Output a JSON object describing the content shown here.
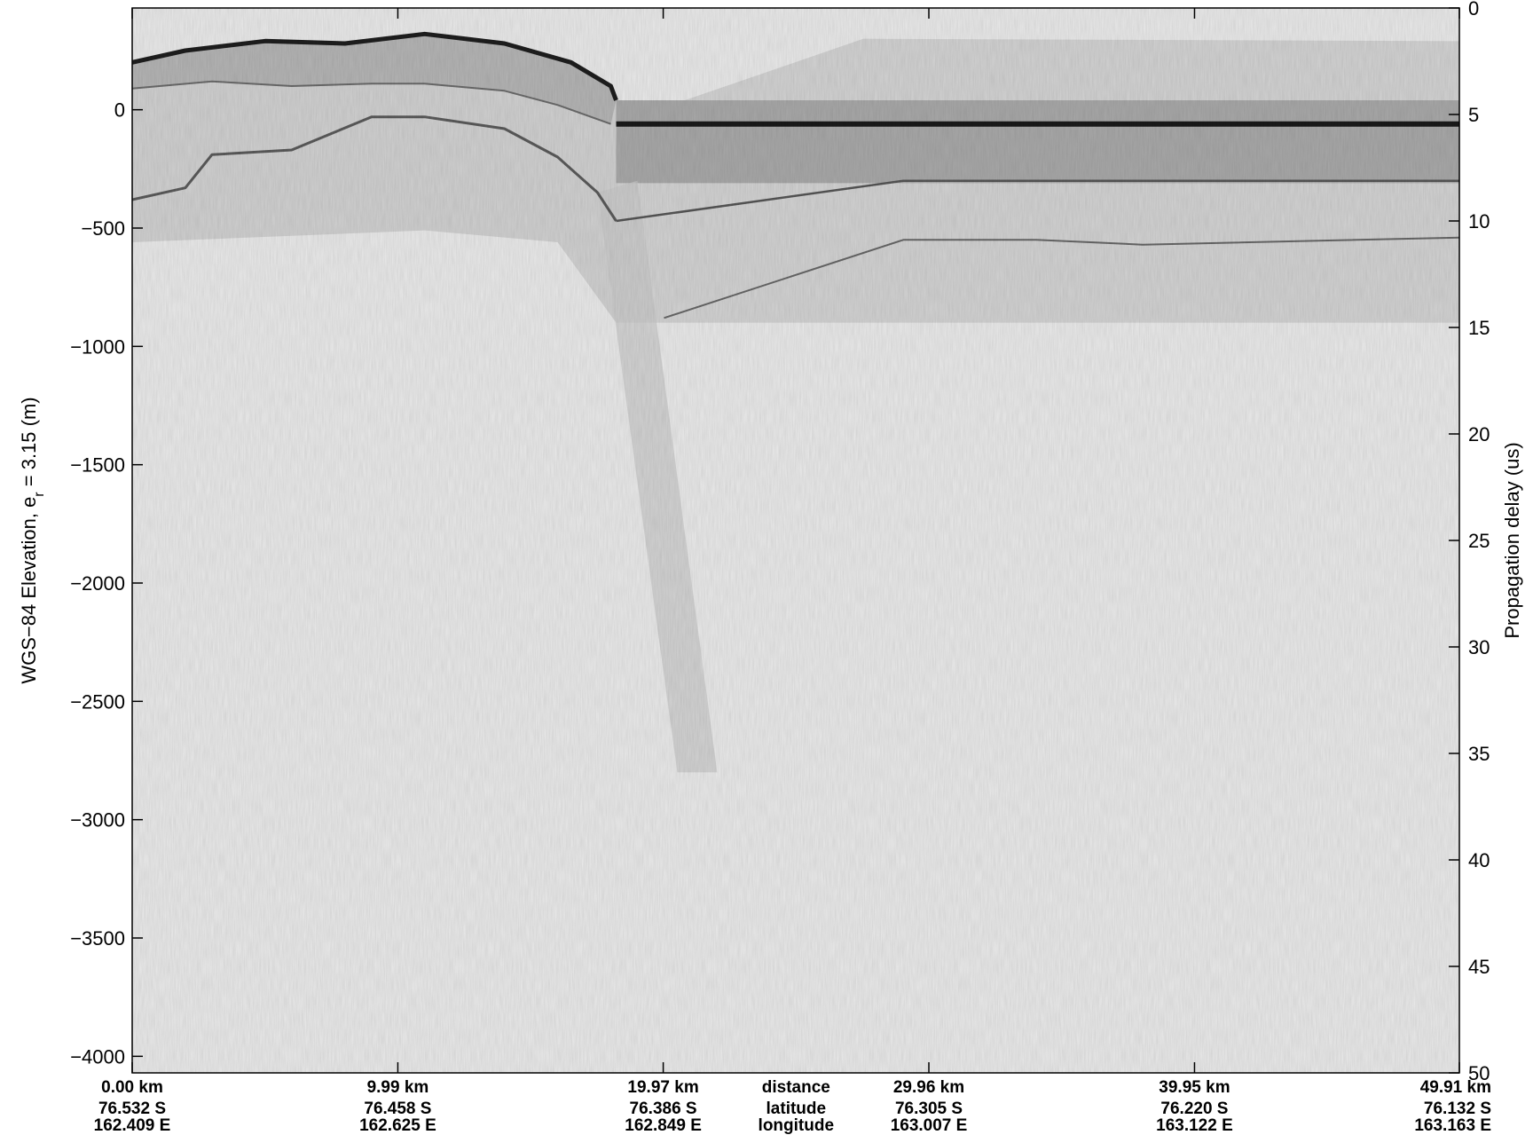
{
  "chart_data": {
    "type": "heatmap",
    "description_kind": "radargram",
    "colormap": "gray",
    "title": "",
    "left_axis": {
      "label": "WGS−84 Elevation, e",
      "label_sub": "r",
      "label_suffix": " = 3.15 (m)",
      "range": [
        -4070,
        430
      ],
      "ticks": [
        0,
        -500,
        -1000,
        -1500,
        -2000,
        -2500,
        -3000,
        -3500,
        -4000
      ],
      "tick_labels": [
        "0",
        "−500",
        "−1000",
        "−1500",
        "−2000",
        "−2500",
        "−3000",
        "−3500",
        "−4000"
      ]
    },
    "right_axis": {
      "label": "Propagation delay (us)",
      "range": [
        0,
        50
      ],
      "ticks": [
        0,
        5,
        10,
        15,
        20,
        25,
        30,
        35,
        40,
        45,
        50
      ],
      "tick_labels": [
        "0",
        "5",
        "10",
        "15",
        "20",
        "25",
        "30",
        "35",
        "40",
        "45",
        "50"
      ]
    },
    "x_axis": {
      "range_km": [
        0,
        49.91
      ],
      "row_titles": [
        "distance",
        "latitude",
        "longitude"
      ],
      "ticks": [
        {
          "distance_km": 0.0,
          "distance": "0.00 km",
          "latitude": "76.532 S",
          "longitude": "162.409 E"
        },
        {
          "distance_km": 9.99,
          "distance": "9.99 km",
          "latitude": "76.458 S",
          "longitude": "162.625 E"
        },
        {
          "distance_km": 19.97,
          "distance": "19.97 km",
          "latitude": "76.386 S",
          "longitude": "162.849 E"
        },
        {
          "distance_km": 29.96,
          "distance": "29.96 km",
          "latitude": "76.305 S",
          "longitude": "163.007 E"
        },
        {
          "distance_km": 39.95,
          "distance": "39.95 km",
          "latitude": "76.220 S",
          "longitude": "163.122 E"
        },
        {
          "distance_km": 49.91,
          "distance": "49.91 km",
          "latitude": "76.132 S",
          "longitude": "163.163 E"
        }
      ]
    },
    "traces": {
      "surface": [
        [
          0,
          200
        ],
        [
          2,
          250
        ],
        [
          5,
          290
        ],
        [
          8,
          280
        ],
        [
          11,
          320
        ],
        [
          14,
          280
        ],
        [
          16.5,
          200
        ],
        [
          18,
          100
        ],
        [
          18.2,
          40
        ]
      ],
      "layer_a": [
        [
          0,
          90
        ],
        [
          3,
          120
        ],
        [
          6,
          100
        ],
        [
          9,
          110
        ],
        [
          11,
          110
        ],
        [
          14,
          80
        ],
        [
          16,
          20
        ],
        [
          18,
          -60
        ]
      ],
      "layer_b": [
        [
          0,
          -380
        ],
        [
          2,
          -330
        ],
        [
          3,
          -190
        ],
        [
          6,
          -170
        ],
        [
          9,
          -30
        ],
        [
          11,
          -30
        ],
        [
          14,
          -80
        ],
        [
          16,
          -200
        ],
        [
          17.5,
          -350
        ],
        [
          18.2,
          -470
        ]
      ],
      "floating_top": [
        [
          18.2,
          -60
        ],
        [
          49.91,
          -60
        ]
      ],
      "reflector_1": [
        [
          18.2,
          -470
        ],
        [
          29,
          -300
        ],
        [
          49.91,
          -300
        ]
      ],
      "reflector_2": [
        [
          20,
          -880
        ],
        [
          29,
          -550
        ],
        [
          34,
          -550
        ],
        [
          38,
          -570
        ],
        [
          49.91,
          -540
        ]
      ]
    }
  }
}
